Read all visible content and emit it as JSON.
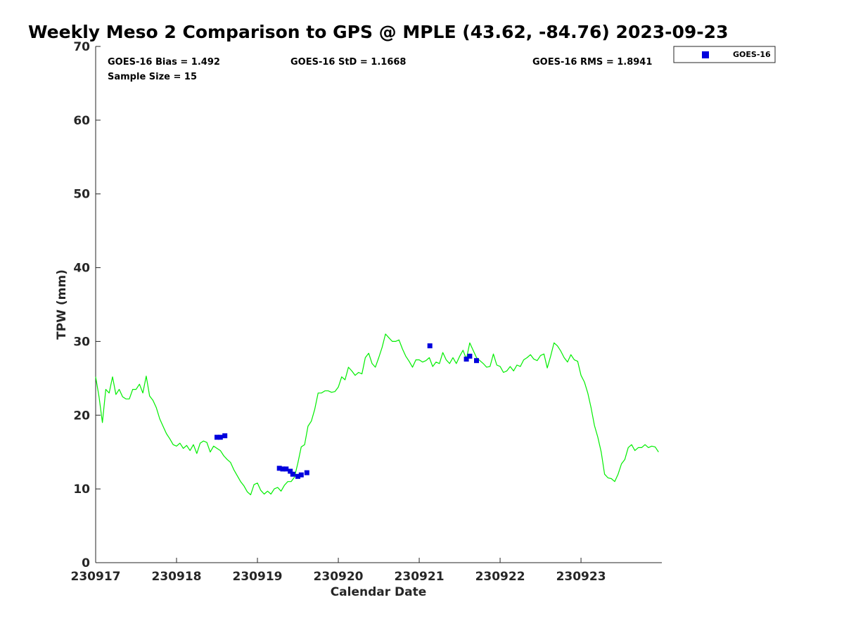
{
  "chart_data": {
    "type": "scatter",
    "title": "Weekly Meso 2 Comparison to GPS @ MPLE (43.62, -84.76) 2023-09-23",
    "xlabel": "Calendar Date",
    "ylabel": "TPW (mm)",
    "xlim": [
      "2023-09-17",
      "2023-09-23 23:59"
    ],
    "ylim": [
      0,
      70
    ],
    "x_ticks": [
      {
        "date": "2023-09-17",
        "label": "230917"
      },
      {
        "date": "2023-09-18",
        "label": "230918"
      },
      {
        "date": "2023-09-19",
        "label": "230919"
      },
      {
        "date": "2023-09-20",
        "label": "230920"
      },
      {
        "date": "2023-09-21",
        "label": "230921"
      },
      {
        "date": "2023-09-22",
        "label": "230922"
      },
      {
        "date": "2023-09-23",
        "label": "230923"
      }
    ],
    "y_ticks": [
      0,
      10,
      20,
      30,
      40,
      50,
      60,
      70
    ],
    "grid": false,
    "legend": {
      "placement": "outside-top-right",
      "entries": [
        "GOES-16"
      ]
    },
    "stats": {
      "bias": "GOES-16 Bias = 1.492",
      "std": "GOES-16 StD = 1.1668",
      "rms": "GOES-16 RMS = 1.8941",
      "sample": "Sample Size = 15"
    },
    "colors": {
      "gps_line": "#00ee00",
      "goes16": "#0000dd",
      "axis": "#262626"
    },
    "series": [
      {
        "kind": "line",
        "name": "",
        "x": [
          "2023-09-17 00:00",
          "2023-09-17 01:00",
          "2023-09-17 02:00",
          "2023-09-17 03:00",
          "2023-09-17 04:00",
          "2023-09-17 05:00",
          "2023-09-17 06:00",
          "2023-09-17 07:00",
          "2023-09-17 08:00",
          "2023-09-17 09:00",
          "2023-09-17 10:00",
          "2023-09-17 11:00",
          "2023-09-17 12:00",
          "2023-09-17 13:00",
          "2023-09-17 14:00",
          "2023-09-17 15:00",
          "2023-09-17 16:00",
          "2023-09-17 17:00",
          "2023-09-17 18:00",
          "2023-09-17 19:00",
          "2023-09-17 20:00",
          "2023-09-17 21:00",
          "2023-09-17 22:00",
          "2023-09-17 23:00",
          "2023-09-18 00:00",
          "2023-09-18 01:00",
          "2023-09-18 02:00",
          "2023-09-18 03:00",
          "2023-09-18 04:00",
          "2023-09-18 05:00",
          "2023-09-18 06:00",
          "2023-09-18 07:00",
          "2023-09-18 08:00",
          "2023-09-18 09:00",
          "2023-09-18 10:00",
          "2023-09-18 11:00",
          "2023-09-18 12:00",
          "2023-09-18 13:00",
          "2023-09-18 14:00",
          "2023-09-18 15:00",
          "2023-09-18 16:00",
          "2023-09-18 17:00",
          "2023-09-18 18:00",
          "2023-09-18 19:00",
          "2023-09-18 20:00",
          "2023-09-18 21:00",
          "2023-09-18 22:00",
          "2023-09-18 23:00",
          "2023-09-19 00:00",
          "2023-09-19 01:00",
          "2023-09-19 02:00",
          "2023-09-19 03:00",
          "2023-09-19 04:00",
          "2023-09-19 05:00",
          "2023-09-19 06:00",
          "2023-09-19 07:00",
          "2023-09-19 08:00",
          "2023-09-19 09:00",
          "2023-09-19 10:00",
          "2023-09-19 11:00",
          "2023-09-19 12:00",
          "2023-09-19 13:00",
          "2023-09-19 14:00",
          "2023-09-19 15:00",
          "2023-09-19 16:00",
          "2023-09-19 17:00",
          "2023-09-19 18:00",
          "2023-09-19 19:00",
          "2023-09-19 20:00",
          "2023-09-19 21:00",
          "2023-09-19 22:00",
          "2023-09-19 23:00",
          "2023-09-20 00:00",
          "2023-09-20 01:00",
          "2023-09-20 02:00",
          "2023-09-20 03:00",
          "2023-09-20 04:00",
          "2023-09-20 05:00",
          "2023-09-20 06:00",
          "2023-09-20 07:00",
          "2023-09-20 08:00",
          "2023-09-20 09:00",
          "2023-09-20 10:00",
          "2023-09-20 11:00",
          "2023-09-20 12:00",
          "2023-09-20 13:00",
          "2023-09-20 14:00",
          "2023-09-20 15:00",
          "2023-09-20 16:00",
          "2023-09-20 17:00",
          "2023-09-20 18:00",
          "2023-09-20 19:00",
          "2023-09-20 20:00",
          "2023-09-20 21:00",
          "2023-09-20 22:00",
          "2023-09-20 23:00",
          "2023-09-21 00:00",
          "2023-09-21 01:00",
          "2023-09-21 02:00",
          "2023-09-21 03:00",
          "2023-09-21 04:00",
          "2023-09-21 05:00",
          "2023-09-21 06:00",
          "2023-09-21 07:00",
          "2023-09-21 08:00",
          "2023-09-21 09:00",
          "2023-09-21 10:00",
          "2023-09-21 11:00",
          "2023-09-21 12:00",
          "2023-09-21 13:00",
          "2023-09-21 14:00",
          "2023-09-21 15:00",
          "2023-09-21 16:00",
          "2023-09-21 17:00",
          "2023-09-21 18:00",
          "2023-09-21 19:00",
          "2023-09-21 20:00",
          "2023-09-21 21:00",
          "2023-09-21 22:00",
          "2023-09-21 23:00",
          "2023-09-22 00:00",
          "2023-09-22 01:00",
          "2023-09-22 02:00",
          "2023-09-22 03:00",
          "2023-09-22 04:00",
          "2023-09-22 05:00",
          "2023-09-22 06:00",
          "2023-09-22 07:00",
          "2023-09-22 08:00",
          "2023-09-22 09:00",
          "2023-09-22 10:00",
          "2023-09-22 11:00",
          "2023-09-22 12:00",
          "2023-09-22 13:00",
          "2023-09-22 14:00",
          "2023-09-22 15:00",
          "2023-09-22 16:00",
          "2023-09-22 17:00",
          "2023-09-22 18:00",
          "2023-09-22 19:00",
          "2023-09-22 20:00",
          "2023-09-22 21:00",
          "2023-09-22 22:00",
          "2023-09-22 23:00",
          "2023-09-23 00:00",
          "2023-09-23 01:00",
          "2023-09-23 02:00",
          "2023-09-23 03:00",
          "2023-09-23 04:00",
          "2023-09-23 05:00",
          "2023-09-23 06:00",
          "2023-09-23 07:00",
          "2023-09-23 08:00",
          "2023-09-23 09:00",
          "2023-09-23 10:00",
          "2023-09-23 11:00",
          "2023-09-23 12:00",
          "2023-09-23 13:00",
          "2023-09-23 14:00",
          "2023-09-23 15:00",
          "2023-09-23 16:00",
          "2023-09-23 17:00",
          "2023-09-23 18:00",
          "2023-09-23 19:00",
          "2023-09-23 20:00",
          "2023-09-23 21:00",
          "2023-09-23 22:00",
          "2023-09-23 23:00"
        ],
        "y": [
          25.2,
          22.5,
          19.0,
          23.5,
          23.0,
          25.2,
          22.8,
          23.5,
          22.5,
          22.2,
          22.2,
          23.5,
          23.5,
          24.2,
          23.0,
          25.3,
          22.6,
          22.0,
          21.0,
          19.5,
          18.5,
          17.5,
          16.8,
          16.0,
          15.8,
          16.2,
          15.5,
          15.9,
          15.2,
          16.0,
          14.8,
          16.2,
          16.5,
          16.3,
          15.0,
          15.8,
          15.5,
          15.2,
          14.5,
          14.0,
          13.6,
          12.6,
          11.8,
          11.0,
          10.4,
          9.6,
          9.2,
          10.6,
          10.8,
          9.8,
          9.3,
          9.7,
          9.3,
          10.0,
          10.2,
          9.7,
          10.5,
          11.0,
          11.0,
          11.6,
          13.5,
          15.7,
          16.0,
          18.5,
          19.2,
          20.8,
          23.0,
          23.0,
          23.3,
          23.3,
          23.1,
          23.2,
          23.8,
          25.2,
          24.8,
          26.5,
          26.0,
          25.4,
          25.8,
          25.6,
          27.8,
          28.4,
          27.0,
          26.5,
          27.8,
          29.2,
          31.0,
          30.5,
          30.0,
          30.0,
          30.2,
          29.0,
          28.0,
          27.3,
          26.5,
          27.5,
          27.5,
          27.2,
          27.4,
          27.8,
          26.6,
          27.2,
          27.0,
          28.5,
          27.5,
          27.0,
          27.8,
          27.0,
          28.0,
          28.8,
          27.6,
          29.8,
          28.8,
          27.8,
          27.4,
          27.0,
          26.5,
          26.6,
          28.3,
          26.8,
          26.6,
          25.8,
          26.0,
          26.6,
          26.0,
          26.8,
          26.6,
          27.5,
          27.8,
          28.2,
          27.6,
          27.4,
          28.1,
          28.3,
          26.4,
          28.0,
          29.8,
          29.4,
          28.7,
          27.8,
          27.2,
          28.2,
          27.5,
          27.3,
          25.4,
          24.5,
          23.0,
          21.0,
          18.6,
          17.0,
          15.0,
          12.0,
          11.5,
          11.4,
          11.0,
          12.0,
          13.4,
          14.0,
          15.6,
          16.0,
          15.2,
          15.6,
          15.6,
          16.0,
          15.6,
          15.8,
          15.7,
          15.0
        ]
      },
      {
        "kind": "scatter",
        "name": "GOES-16",
        "marker": "square",
        "x": [
          "2023-09-18 12:00",
          "2023-09-18 13:00",
          "2023-09-18 14:20",
          "2023-09-19 06:30",
          "2023-09-19 07:30",
          "2023-09-19 08:30",
          "2023-09-19 09:45",
          "2023-09-19 10:30",
          "2023-09-19 12:00",
          "2023-09-19 13:00",
          "2023-09-19 14:40",
          "2023-09-21 03:10",
          "2023-09-21 14:00",
          "2023-09-21 15:00",
          "2023-09-21 17:00"
        ],
        "y": [
          17.0,
          17.0,
          17.2,
          12.8,
          12.7,
          12.7,
          12.4,
          12.0,
          11.7,
          11.9,
          12.2,
          29.4,
          27.6,
          28.0,
          27.4
        ]
      }
    ]
  }
}
